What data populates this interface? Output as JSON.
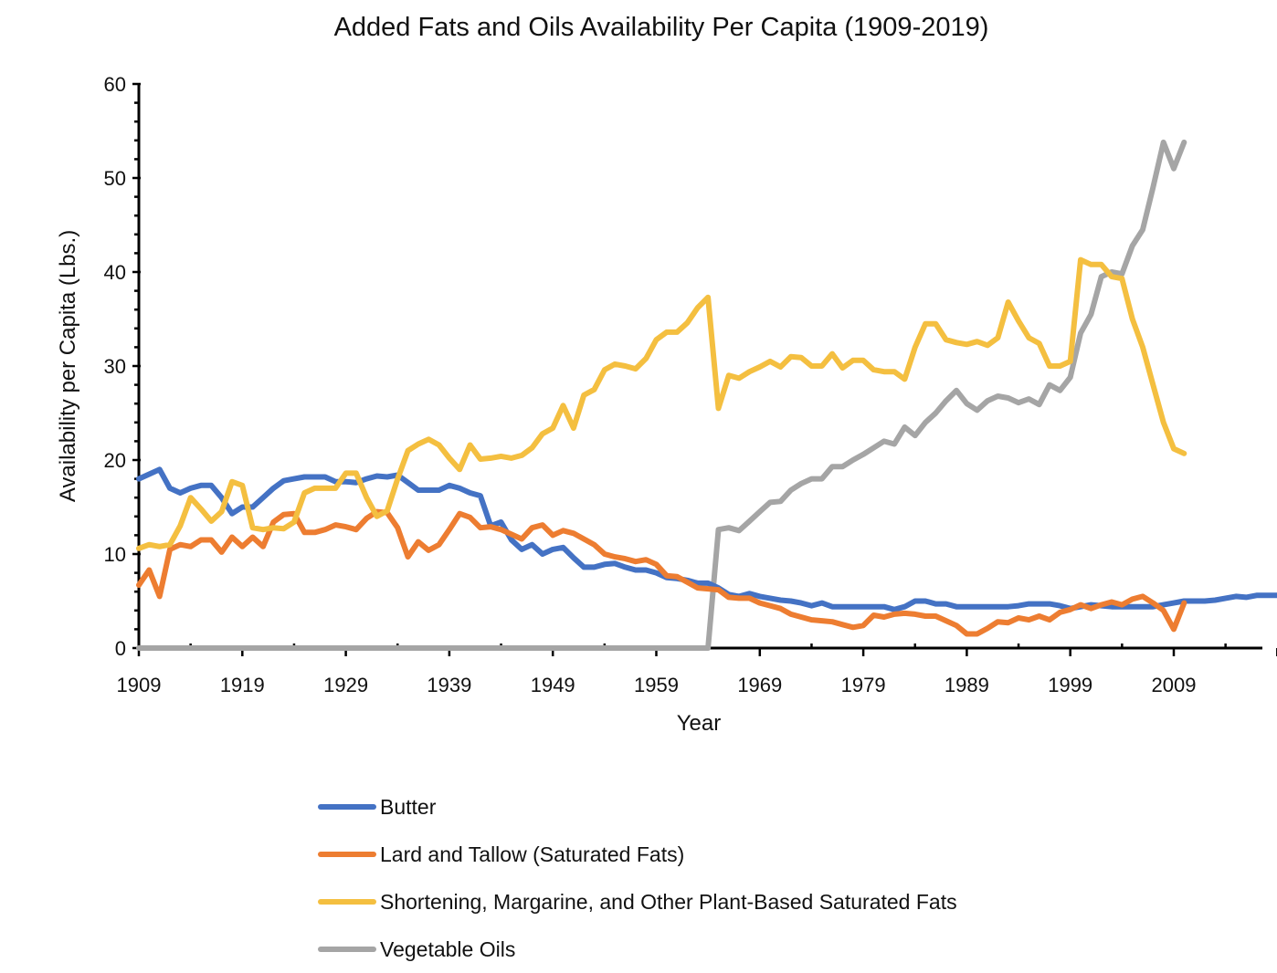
{
  "chart_data": {
    "type": "line",
    "title": "Added Fats and Oils Availability Per Capita (1909-2019)",
    "xlabel": "Year",
    "ylabel": "Availability per Capita (Lbs.)",
    "xlim": [
      1909,
      2019
    ],
    "ylim": [
      0,
      60
    ],
    "x_ticks": [
      "1909",
      "1919",
      "1929",
      "1939",
      "1949",
      "1959",
      "1969",
      "1979",
      "1989",
      "1999",
      "2009"
    ],
    "y_ticks": [
      "0",
      "10",
      "20",
      "30",
      "40",
      "50",
      "60"
    ],
    "grid": false,
    "legend": "bottom",
    "series": [
      {
        "name": "Butter",
        "color": "#4472C4",
        "start": 1909,
        "values": [
          18,
          18.5,
          19,
          17,
          16.5,
          17,
          17.3,
          17.3,
          16,
          14.3,
          15,
          15,
          16,
          17,
          17.8,
          18,
          18.2,
          18.2,
          18.2,
          17.7,
          17.7,
          17.6,
          18,
          18.3,
          18.2,
          18.4,
          17.6,
          16.8,
          16.8,
          16.8,
          17.3,
          17,
          16.5,
          16.2,
          13,
          13.4,
          11.5,
          10.5,
          11,
          10,
          10.5,
          10.7,
          9.6,
          8.6,
          8.6,
          8.9,
          9,
          8.6,
          8.3,
          8.3,
          8,
          7.5,
          7.4,
          7.2,
          6.9,
          6.9,
          6.4,
          5.7,
          5.5,
          5.8,
          5.5,
          5.3,
          5.1,
          5,
          4.8,
          4.5,
          4.8,
          4.4,
          4.4,
          4.4,
          4.4,
          4.4,
          4.4,
          4.1,
          4.4,
          5,
          5,
          4.7,
          4.7,
          4.4,
          4.4,
          4.4,
          4.4,
          4.4,
          4.4,
          4.5,
          4.7,
          4.7,
          4.7,
          4.5,
          4.2,
          4.4,
          4.6,
          4.5,
          4.4,
          4.4,
          4.4,
          4.4,
          4.4,
          4.6,
          4.8,
          5,
          5,
          5,
          5.1,
          5.3,
          5.5,
          5.4,
          5.6,
          5.6,
          5.6,
          5.6,
          5.6
        ]
      },
      {
        "name": "Lard and Tallow (Saturated Fats)",
        "color": "#ED7D31",
        "start": 1909,
        "values": [
          6.7,
          8.3,
          5.5,
          10.5,
          11,
          10.8,
          11.5,
          11.5,
          10.2,
          11.8,
          10.8,
          11.8,
          10.8,
          13.4,
          14.2,
          14.3,
          12.3,
          12.3,
          12.6,
          13.1,
          12.9,
          12.6,
          13.8,
          14.5,
          14.4,
          12.8,
          9.7,
          11.3,
          10.4,
          11,
          12.6,
          14.3,
          13.9,
          12.8,
          12.9,
          12.6,
          12.1,
          11.6,
          12.8,
          13.1,
          12,
          12.5,
          12.2,
          11.6,
          11,
          10,
          9.7,
          9.5,
          9.2,
          9.4,
          8.9,
          7.7,
          7.6,
          7,
          6.4,
          6.3,
          6.2,
          5.4,
          5.3,
          5.3,
          4.8,
          4.5,
          4.2,
          3.6,
          3.3,
          3,
          2.9,
          2.8,
          2.5,
          2.2,
          2.4,
          3.5,
          3.3,
          3.6,
          3.7,
          3.6,
          3.4,
          3.4,
          2.9,
          2.4,
          1.5,
          1.5,
          2.1,
          2.8,
          2.7,
          3.2,
          3,
          3.4,
          3,
          3.8,
          4.1,
          4.6,
          4.2,
          4.6,
          4.9,
          4.6,
          5.2,
          5.5,
          4.8,
          4,
          2,
          4.8
        ]
      },
      {
        "name": "Shortening, Margarine, and Other Plant-Based Saturated Fats",
        "color": "#F4BF40",
        "start": 1909,
        "values": [
          10.6,
          11,
          10.8,
          11,
          13,
          16,
          14.8,
          13.5,
          14.5,
          17.7,
          17.3,
          12.8,
          12.6,
          12.8,
          12.7,
          13.4,
          16.5,
          17,
          17,
          17,
          18.6,
          18.6,
          16,
          14,
          14.6,
          18,
          21,
          21.7,
          22.2,
          21.6,
          20.2,
          19,
          21.6,
          20.1,
          20.2,
          20.4,
          20.2,
          20.5,
          21.3,
          22.8,
          23.4,
          25.8,
          23.4,
          26.9,
          27.5,
          29.6,
          30.2,
          30,
          29.7,
          30.8,
          32.8,
          33.6,
          33.6,
          34.6,
          36.2,
          37.3,
          25.5,
          29,
          28.7,
          29.4,
          29.9,
          30.5,
          29.9,
          31,
          30.9,
          30,
          30,
          31.3,
          29.8,
          30.6,
          30.6,
          29.6,
          29.4,
          29.4,
          28.6,
          32,
          34.5,
          34.5,
          32.8,
          32.5,
          32.3,
          32.6,
          32.2,
          33,
          36.8,
          34.8,
          33,
          32.4,
          30,
          30,
          30.5,
          41.3,
          40.8,
          40.8,
          39.5,
          39.3,
          35,
          32,
          28,
          24,
          21.2,
          20.7
        ]
      },
      {
        "name": "Vegetable Oils",
        "color": "#A5A5A5",
        "start": 1909,
        "values": [
          0,
          0,
          0,
          0,
          0,
          0,
          0,
          0,
          0,
          0,
          0,
          0,
          0,
          0,
          0,
          0,
          0,
          0,
          0,
          0,
          0,
          0,
          0,
          0,
          0,
          0,
          0,
          0,
          0,
          0,
          0,
          0,
          0,
          0,
          0,
          0,
          0,
          0,
          0,
          0,
          0,
          0,
          0,
          0,
          0,
          0,
          0,
          0,
          0,
          0,
          0,
          0,
          0,
          0,
          0,
          0,
          12.6,
          12.8,
          12.5,
          13.5,
          14.5,
          15.5,
          15.6,
          16.8,
          17.5,
          18,
          18,
          19.3,
          19.3,
          20,
          20.6,
          21.3,
          22,
          21.7,
          23.5,
          22.6,
          24,
          25,
          26.3,
          27.4,
          26,
          25.3,
          26.3,
          26.8,
          26.6,
          26.1,
          26.5,
          25.9,
          28,
          27.4,
          28.8,
          33.5,
          35.5,
          39.5,
          40,
          39.8,
          42.8,
          44.5,
          49,
          53.8,
          51,
          53.8
        ]
      }
    ]
  }
}
